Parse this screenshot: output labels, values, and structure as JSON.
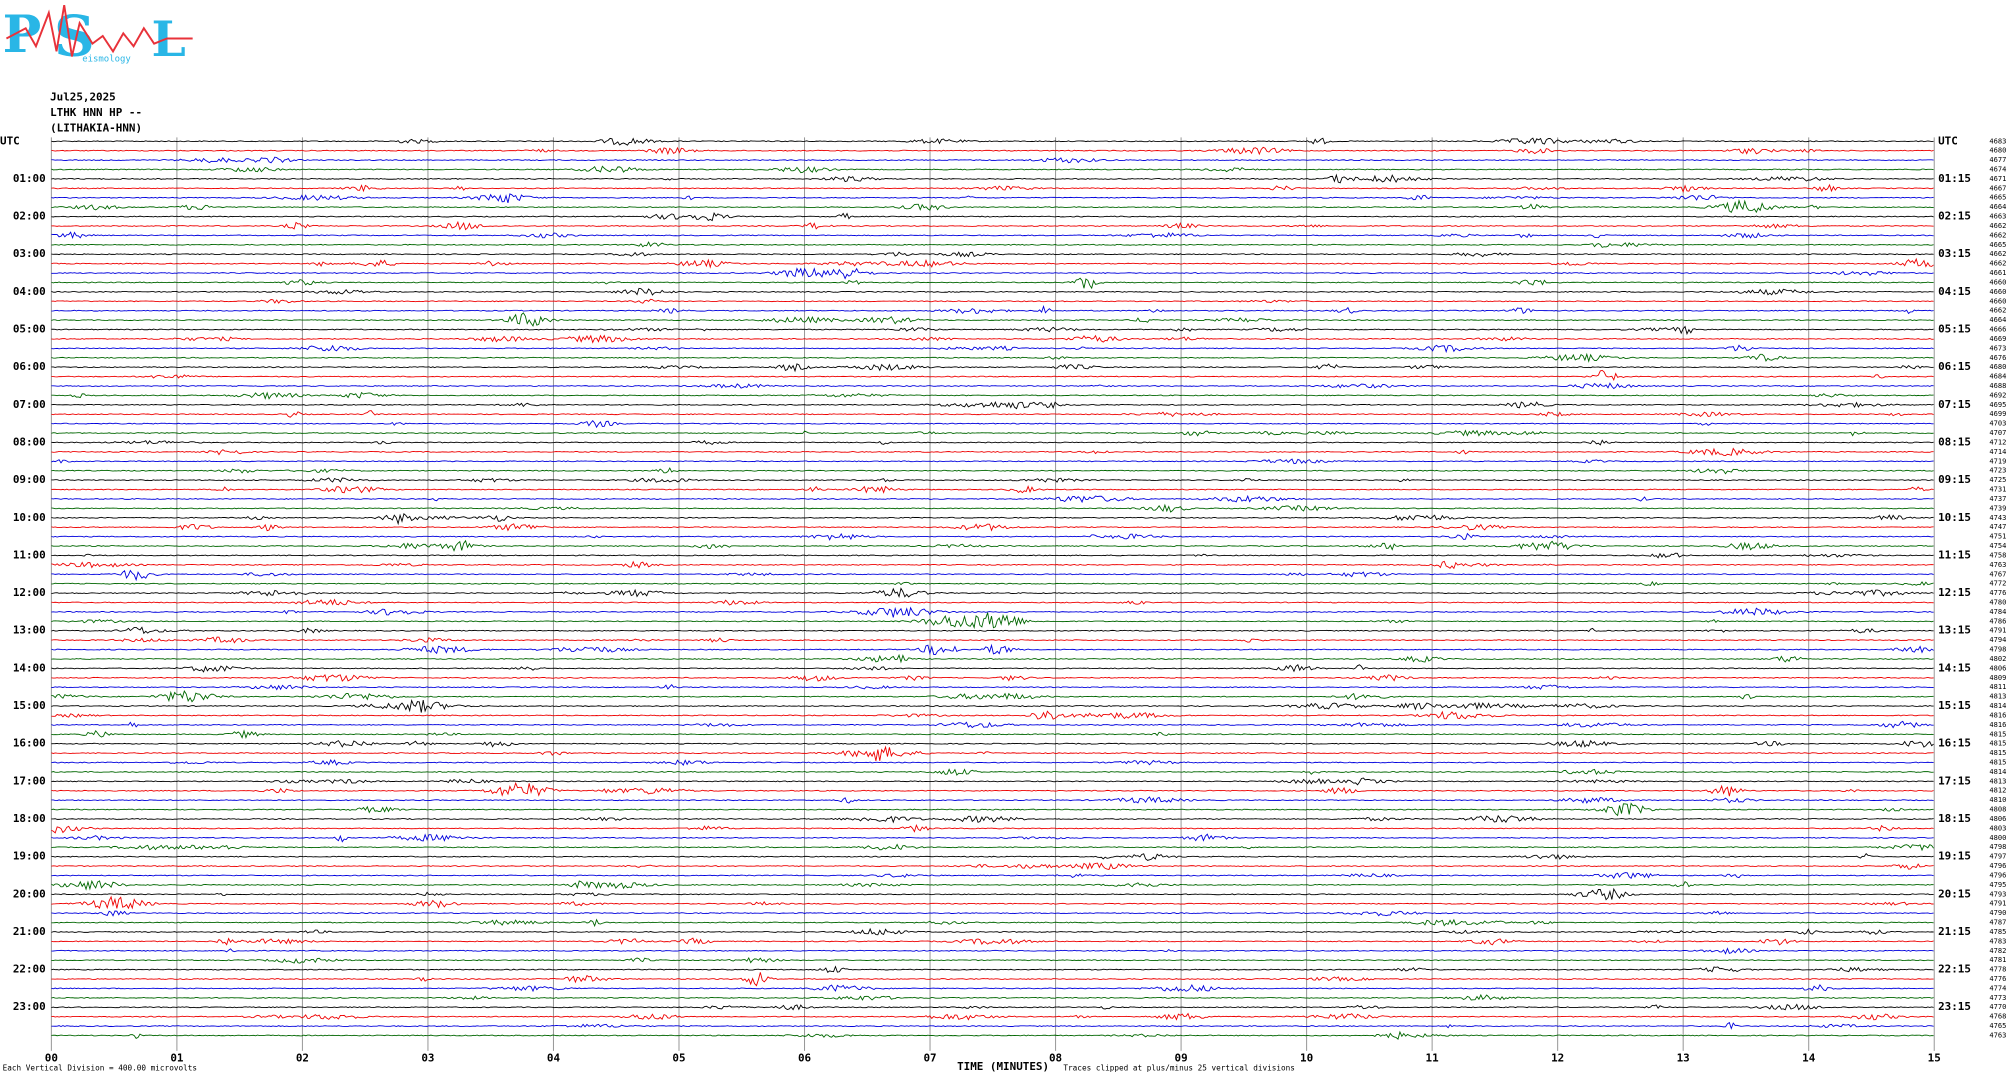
{
  "logo": {
    "p": "P",
    "s": "S",
    "l": "L",
    "small": "eismology"
  },
  "header": {
    "date": "Jul25,2025",
    "station": "LTHK HNN HP --",
    "location": "(LITHAKIA-HNN)"
  },
  "left_labels": [
    "UTC",
    "01:00",
    "02:00",
    "03:00",
    "04:00",
    "05:00",
    "06:00",
    "07:00",
    "08:00",
    "09:00",
    "10:00",
    "11:00",
    "12:00",
    "13:00",
    "14:00",
    "15:00",
    "16:00",
    "17:00",
    "18:00",
    "19:00",
    "20:00",
    "21:00",
    "22:00",
    "23:00"
  ],
  "right_labels": [
    "UTC",
    "01:15",
    "02:15",
    "03:15",
    "04:15",
    "05:15",
    "06:15",
    "07:15",
    "08:15",
    "09:15",
    "10:15",
    "11:15",
    "12:15",
    "13:15",
    "14:15",
    "15:15",
    "16:15",
    "17:15",
    "18:15",
    "19:15",
    "20:15",
    "21:15",
    "22:15",
    "23:15"
  ],
  "row_offsets": [
    "4683",
    "4680",
    "4677",
    "4674",
    "4671",
    "4667",
    "4665",
    "4664",
    "4663",
    "4662",
    "4662",
    "4665",
    "4662",
    "4662",
    "4661",
    "4660",
    "4660",
    "4660",
    "4662",
    "4664",
    "4666",
    "4669",
    "4673",
    "4676",
    "4680",
    "4684",
    "4688",
    "4692",
    "4695",
    "4699",
    "4703",
    "4707",
    "4712",
    "4714",
    "4719",
    "4723",
    "4725",
    "4731",
    "4737",
    "4739",
    "4743",
    "4747",
    "4751",
    "4754",
    "4758",
    "4763",
    "4767",
    "4772",
    "4776",
    "4780",
    "4784",
    "4786",
    "4791",
    "4794",
    "4798",
    "4802",
    "4806",
    "4809",
    "4811",
    "4813",
    "4814",
    "4816",
    "4816",
    "4815",
    "4815",
    "4815",
    "4815",
    "4814",
    "4813",
    "4812",
    "4810",
    "4808",
    "4806",
    "4803",
    "4800",
    "4798",
    "4797",
    "4796",
    "4796",
    "4795",
    "4793",
    "4791",
    "4790",
    "4787",
    "4785",
    "4783",
    "4782",
    "4781",
    "4778",
    "4776",
    "4774",
    "4773",
    "4770",
    "4768",
    "4765",
    "4763"
  ],
  "x_labels": [
    "00",
    "01",
    "02",
    "03",
    "04",
    "05",
    "06",
    "07",
    "08",
    "09",
    "10",
    "11",
    "12",
    "13",
    "14",
    "15"
  ],
  "footer": {
    "scale": "Each Vertical Division =  400.00 microvolts",
    "axis": "TIME (MINUTES)",
    "clip": "Traces clipped at plus/minus 25 vertical divisions"
  }
}
